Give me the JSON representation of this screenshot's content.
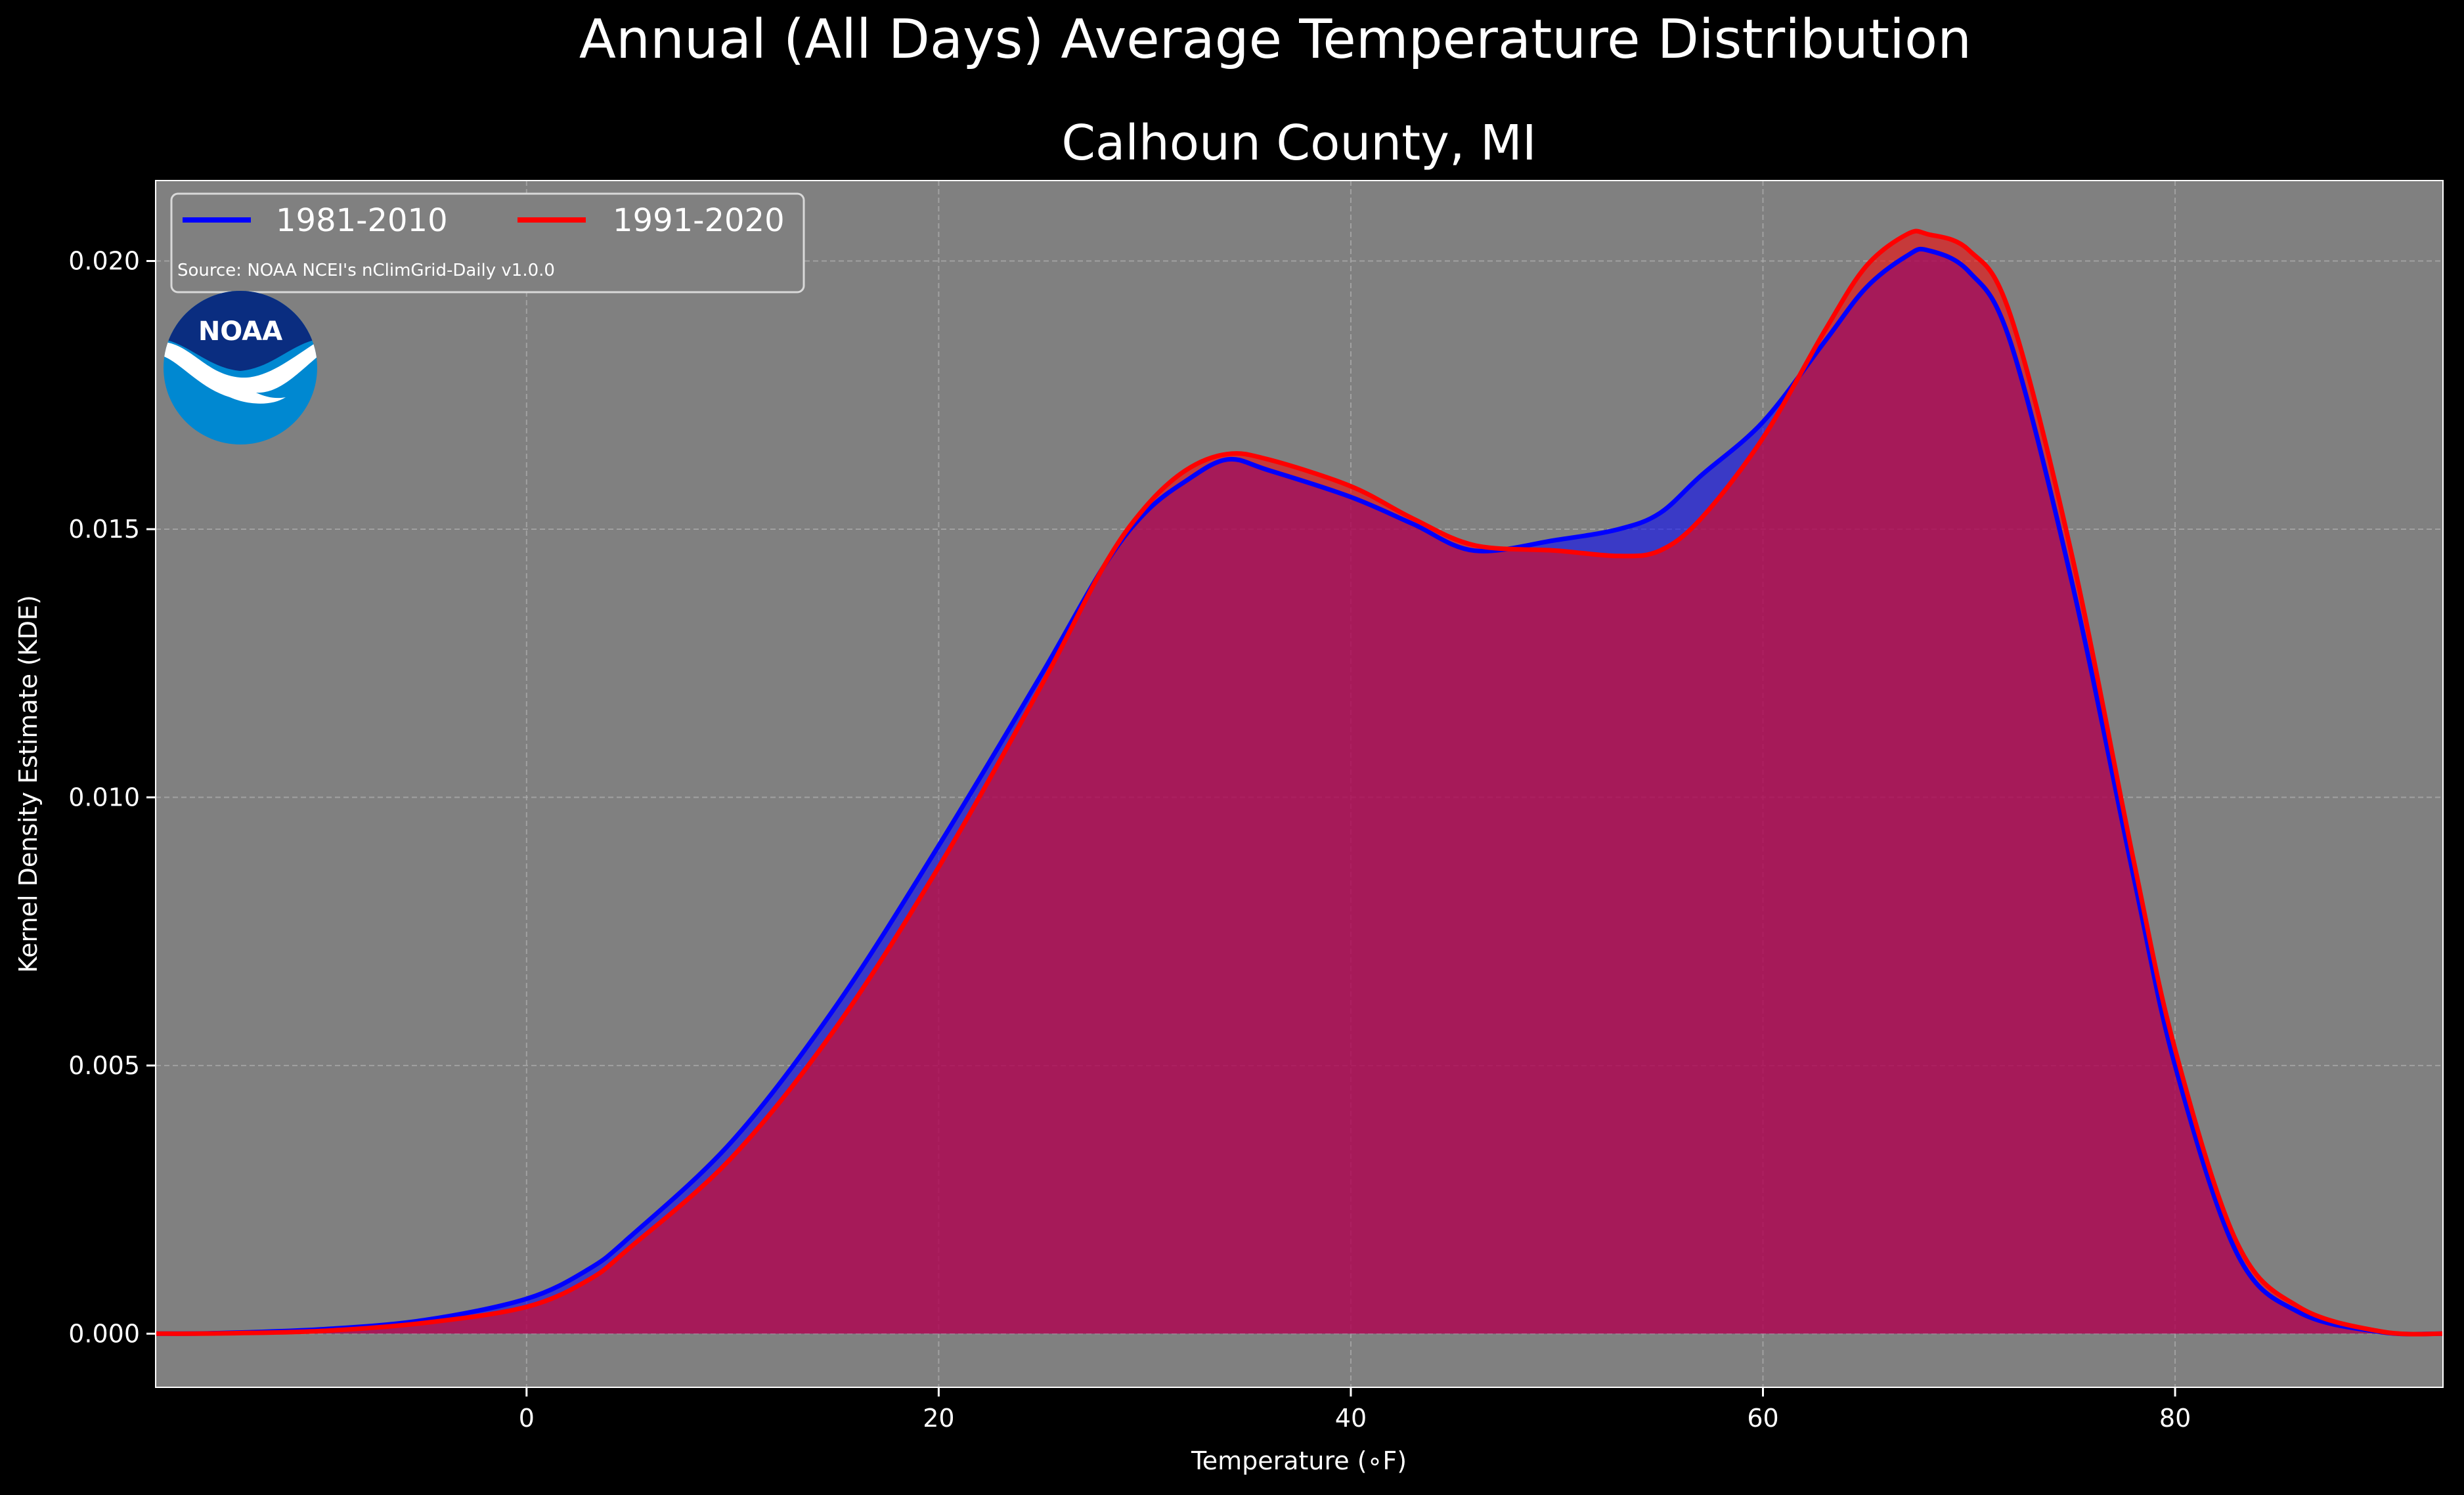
{
  "chart_data": {
    "type": "area",
    "suptitle": "Annual (All Days) Average Temperature Distribution",
    "title": "Calhoun County, MI",
    "xlabel": "Temperature (∘F)",
    "ylabel": "Kernel Density Estimate (KDE)",
    "source": "Source: NOAA NCEI's nClimGrid-Daily v1.0.0",
    "logo_text": "NOAA",
    "xlim": [
      -18,
      93
    ],
    "ylim": [
      -0.001,
      0.0215
    ],
    "xticks": [
      0,
      20,
      40,
      60,
      80
    ],
    "xtick_labels": [
      "0",
      "20",
      "40",
      "60",
      "80"
    ],
    "yticks": [
      0.0,
      0.005,
      0.01,
      0.015,
      0.02
    ],
    "ytick_labels": [
      "0.000",
      "0.005",
      "0.010",
      "0.015",
      "0.020"
    ],
    "grid": true,
    "legend_position": "top-left",
    "colors": {
      "background": "#000000",
      "plot_bg": "#808080",
      "series_1981": "#0000ff",
      "series_1991": "#ff0000"
    },
    "series": [
      {
        "name": "1981-2010",
        "color": "#0000ff",
        "x": [
          -18,
          -15,
          -10,
          -5,
          0,
          3,
          5,
          10,
          15,
          20,
          25,
          28,
          30,
          32,
          34,
          36,
          40,
          43,
          46,
          50,
          53,
          55,
          57,
          60,
          63,
          65,
          67,
          68,
          70,
          72,
          75,
          78,
          80,
          83,
          86,
          90,
          93
        ],
        "y": [
          0.0,
          1e-05,
          8e-05,
          0.00025,
          0.00065,
          0.0012,
          0.0018,
          0.0036,
          0.0061,
          0.0091,
          0.0123,
          0.0143,
          0.0153,
          0.0159,
          0.0163,
          0.0161,
          0.0156,
          0.0151,
          0.0146,
          0.0148,
          0.015,
          0.0153,
          0.016,
          0.017,
          0.0185,
          0.0195,
          0.0201,
          0.0202,
          0.0198,
          0.0185,
          0.014,
          0.0085,
          0.005,
          0.0015,
          0.0004,
          3e-05,
          0.0
        ]
      },
      {
        "name": "1991-2020",
        "color": "#ff0000",
        "x": [
          -18,
          -15,
          -10,
          -5,
          0,
          3,
          5,
          10,
          15,
          20,
          25,
          28,
          30,
          32,
          34,
          36,
          40,
          43,
          46,
          50,
          53,
          55,
          57,
          60,
          63,
          65,
          67,
          68,
          70,
          72,
          75,
          78,
          80,
          83,
          86,
          90,
          93
        ],
        "y": [
          0.0,
          5e-06,
          5e-05,
          0.0002,
          0.0005,
          0.001,
          0.0016,
          0.0033,
          0.0057,
          0.0087,
          0.0121,
          0.0143,
          0.0154,
          0.0161,
          0.0164,
          0.0163,
          0.0158,
          0.0152,
          0.0147,
          0.0146,
          0.0145,
          0.0146,
          0.0152,
          0.0167,
          0.0187,
          0.0199,
          0.0205,
          0.0205,
          0.0202,
          0.019,
          0.0145,
          0.0088,
          0.0053,
          0.0017,
          0.0005,
          4e-05,
          0.0
        ]
      }
    ]
  }
}
